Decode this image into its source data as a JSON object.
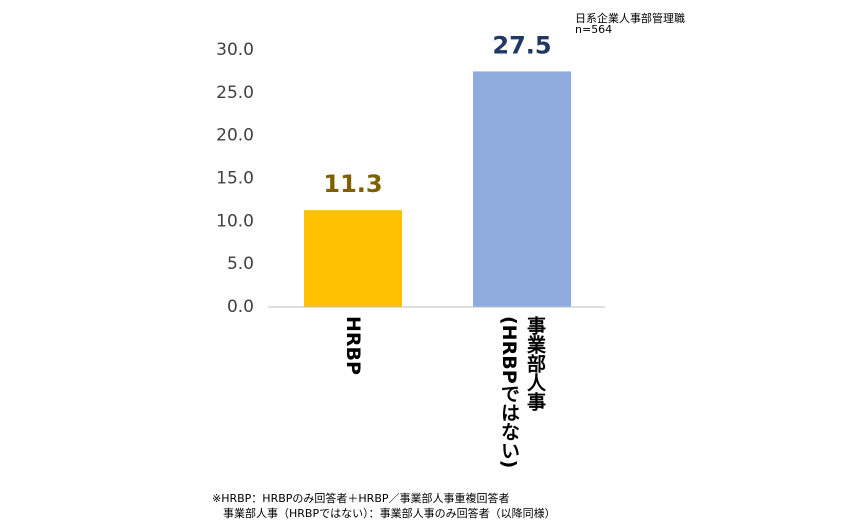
{
  "chart_data": {
    "type": "bar",
    "notes_top": [
      "日系企業人事部管理職",
      "n=564"
    ],
    "categories": [
      "HRBP",
      "事業部人事\n(HRBPではない)"
    ],
    "values": [
      11.3,
      27.5
    ],
    "colors": [
      "#ffc000",
      "#8faadc"
    ],
    "value_label_colors": [
      "#7f6000",
      "#1f3864"
    ],
    "ylim": [
      0,
      30
    ],
    "yticks": [
      {
        "value": 0,
        "label": "0.0"
      },
      {
        "value": 5,
        "label": "5.0"
      },
      {
        "value": 10,
        "label": "10.0"
      },
      {
        "value": 15,
        "label": "15.0"
      },
      {
        "value": 20,
        "label": "20.0"
      },
      {
        "value": 25,
        "label": "25.0"
      },
      {
        "value": 30,
        "label": "30.0"
      }
    ],
    "footnotes": [
      "※HRBP：HRBPのみ回答者＋HRBP／事業部人事重複回答者",
      "　事業部人事（HRBPではない）：事業部人事のみ回答者（以降同様）"
    ]
  }
}
